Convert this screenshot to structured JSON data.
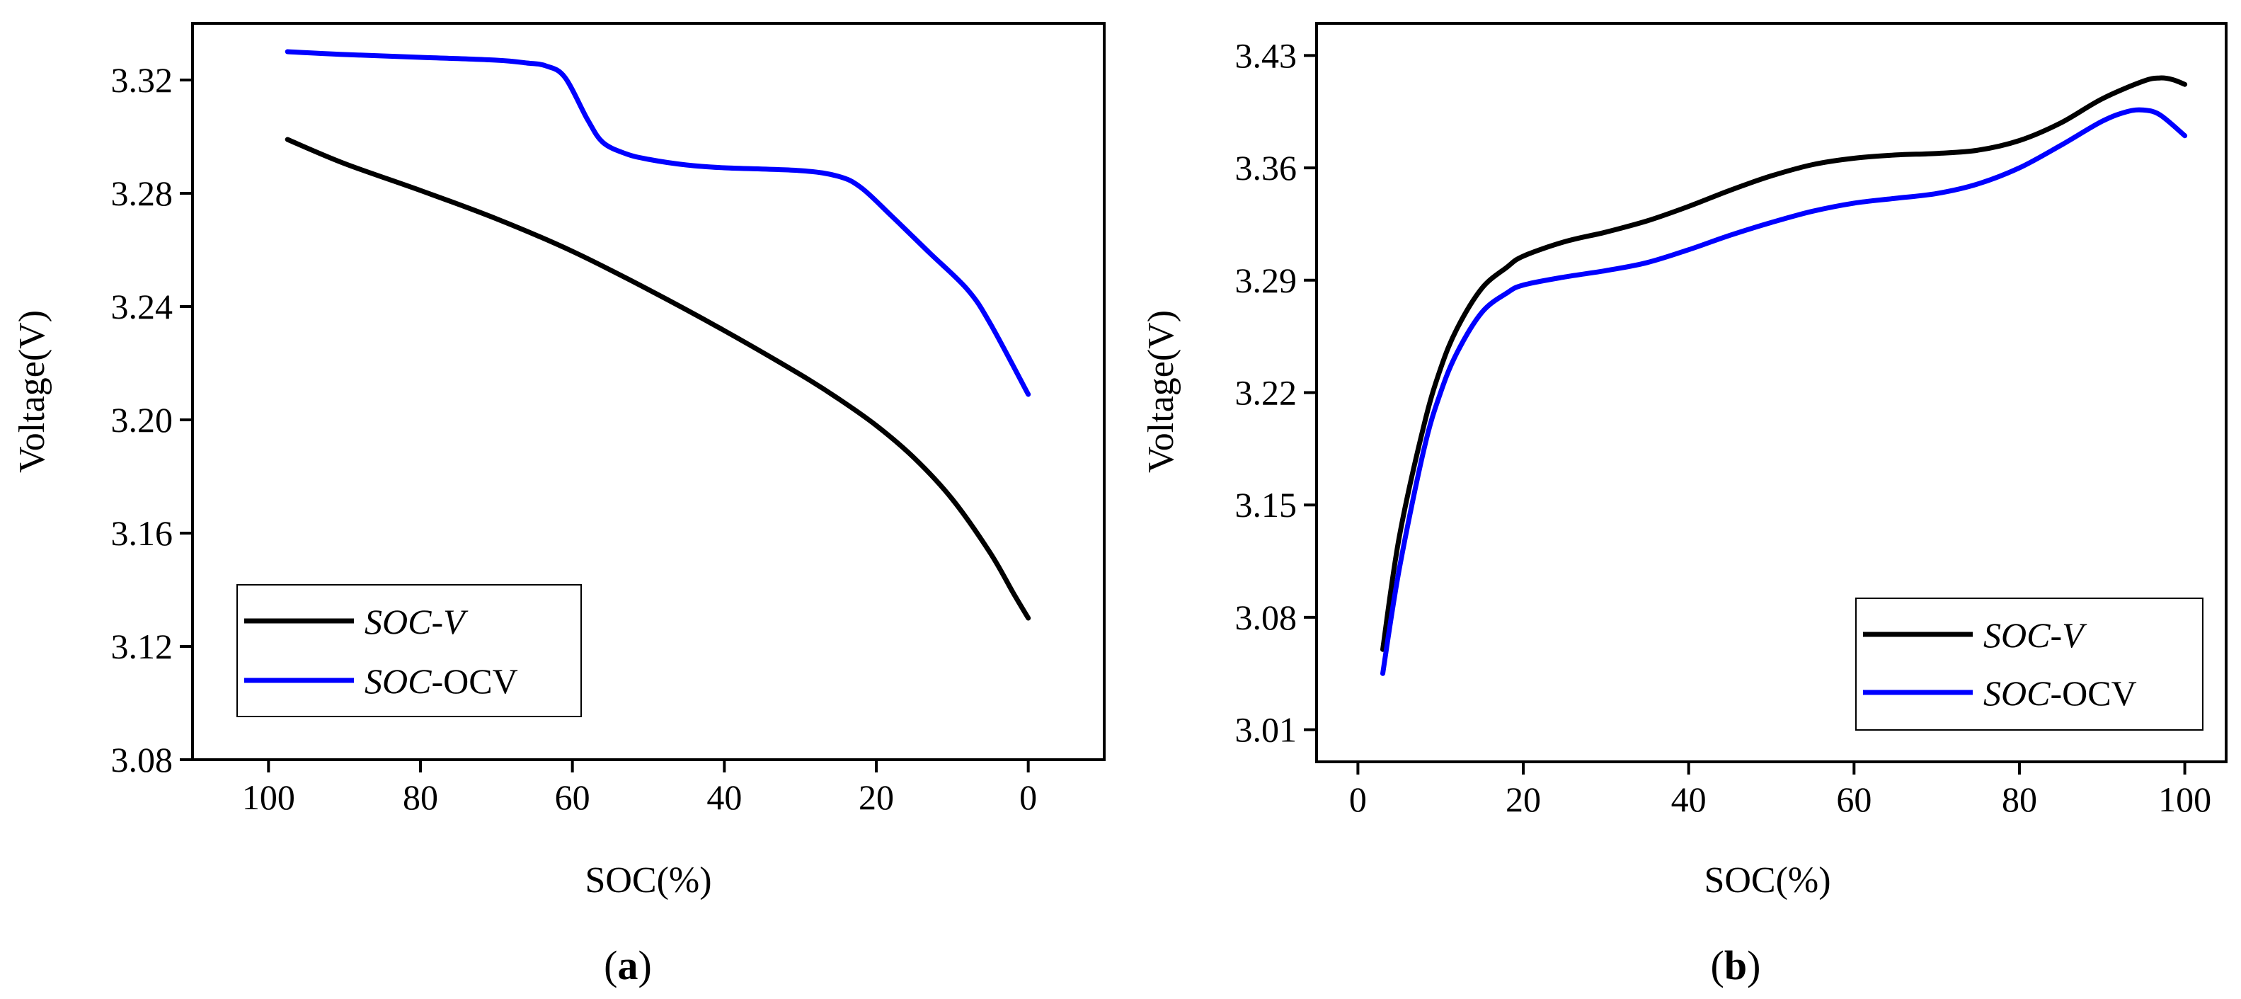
{
  "chart_data": [
    {
      "type": "line",
      "panel_label": "a",
      "xlabel": "SOC(%)",
      "ylabel": "Voltage(V)",
      "xlim": [
        110,
        -10
      ],
      "ylim": [
        3.08,
        3.34
      ],
      "xticks": [
        100,
        80,
        60,
        40,
        20,
        0
      ],
      "yticks": [
        3.08,
        3.12,
        3.16,
        3.2,
        3.24,
        3.28,
        3.32
      ],
      "ytick_labels": [
        "3.08",
        "3.12",
        "3.16",
        "3.20",
        "3.24",
        "3.28",
        "3.32"
      ],
      "legend_position": "bottom-left",
      "series": [
        {
          "name_italic": "SOC",
          "name_rest": "-V",
          "rest_italic": true,
          "color": "#000000",
          "x": [
            97.5,
            90,
            80,
            70,
            60,
            50,
            40,
            30,
            25,
            20,
            15,
            10,
            5,
            2,
            0
          ],
          "y": [
            3.299,
            3.2905,
            3.281,
            3.271,
            3.2595,
            3.246,
            3.2315,
            3.216,
            3.2075,
            3.198,
            3.1865,
            3.172,
            3.153,
            3.139,
            3.13
          ]
        },
        {
          "name_italic": "SOC",
          "name_rest": "-OCV",
          "rest_italic": false,
          "color": "#0000ff",
          "x": [
            97.5,
            90,
            80,
            70,
            66,
            63.5,
            61,
            58,
            56,
            53,
            50,
            45,
            40,
            30,
            25,
            22,
            18,
            13,
            8,
            5,
            0
          ],
          "y": [
            3.33,
            3.329,
            3.328,
            3.327,
            3.326,
            3.325,
            3.321,
            3.306,
            3.298,
            3.294,
            3.292,
            3.29,
            3.289,
            3.288,
            3.286,
            3.282,
            3.272,
            3.259,
            3.246,
            3.234,
            3.209
          ]
        }
      ]
    },
    {
      "type": "line",
      "panel_label": "b",
      "xlabel": "SOC(%)",
      "ylabel": "Voltage(V)",
      "xlim": [
        -5,
        105
      ],
      "ylim": [
        2.99,
        3.45
      ],
      "xticks": [
        0,
        20,
        40,
        60,
        80,
        100
      ],
      "yticks": [
        3.01,
        3.08,
        3.15,
        3.22,
        3.29,
        3.36,
        3.43
      ],
      "ytick_labels": [
        "3.01",
        "3.08",
        "3.15",
        "3.22",
        "3.29",
        "3.36",
        "3.43"
      ],
      "legend_position": "bottom-right",
      "series": [
        {
          "name_italic": "SOC",
          "name_rest": "-V",
          "rest_italic": true,
          "color": "#000000",
          "x": [
            3,
            5,
            8,
            10,
            12,
            15,
            18,
            20,
            25,
            30,
            35,
            40,
            45,
            50,
            55,
            60,
            65,
            70,
            75,
            80,
            85,
            90,
            95,
            97,
            98.5,
            100
          ],
          "y": [
            3.06,
            3.13,
            3.2,
            3.235,
            3.26,
            3.285,
            3.298,
            3.305,
            3.314,
            3.32,
            3.327,
            3.336,
            3.346,
            3.355,
            3.362,
            3.366,
            3.368,
            3.369,
            3.371,
            3.377,
            3.388,
            3.403,
            3.414,
            3.416,
            3.415,
            3.412
          ]
        },
        {
          "name_italic": "SOC",
          "name_rest": "-OCV",
          "rest_italic": false,
          "color": "#0000ff",
          "x": [
            3,
            5,
            8,
            10,
            12,
            15,
            18,
            20,
            25,
            30,
            35,
            40,
            45,
            50,
            55,
            60,
            65,
            70,
            75,
            80,
            85,
            90,
            93,
            95,
            97,
            100
          ],
          "y": [
            3.045,
            3.11,
            3.185,
            3.22,
            3.245,
            3.27,
            3.282,
            3.287,
            3.292,
            3.296,
            3.301,
            3.309,
            3.318,
            3.326,
            3.333,
            3.338,
            3.341,
            3.344,
            3.35,
            3.36,
            3.374,
            3.389,
            3.395,
            3.396,
            3.393,
            3.38
          ]
        }
      ]
    }
  ]
}
